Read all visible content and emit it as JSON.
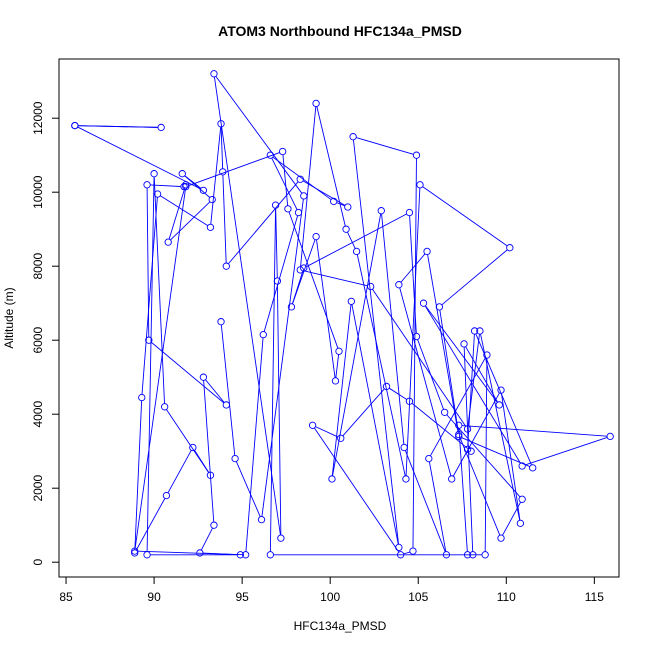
{
  "chart_data": {
    "type": "line",
    "title": "ATOM3 Northbound HFC134a_PMSD",
    "xlabel": "HFC134a_PMSD",
    "ylabel": "Altitude (m)",
    "xlim": [
      84.6,
      116.4
    ],
    "ylim": [
      -400,
      13600
    ],
    "xticks": [
      85,
      90,
      95,
      100,
      105,
      110,
      115
    ],
    "yticks": [
      0,
      2000,
      4000,
      6000,
      8000,
      10000,
      12000
    ],
    "grid": false,
    "legend": "none",
    "color": "#0000ff",
    "marker": "open-circle",
    "points": [
      {
        "x": 85.5,
        "y": 11800
      },
      {
        "x": 90.4,
        "y": 11750
      },
      {
        "x": 85.5,
        "y": 11800
      },
      {
        "x": 92.8,
        "y": 10050
      },
      {
        "x": 91.6,
        "y": 10500
      },
      {
        "x": 93.3,
        "y": 9800
      },
      {
        "x": 90.8,
        "y": 8650
      },
      {
        "x": 91.8,
        "y": 10200
      },
      {
        "x": 91.7,
        "y": 10150
      },
      {
        "x": 89.6,
        "y": 10200
      },
      {
        "x": 89.7,
        "y": 6000
      },
      {
        "x": 94.1,
        "y": 4250
      },
      {
        "x": 92.8,
        "y": 5000
      },
      {
        "x": 93.4,
        "y": 1000
      },
      {
        "x": 92.6,
        "y": 250
      },
      {
        "x": 94.9,
        "y": 200
      },
      {
        "x": 89.6,
        "y": 200
      },
      {
        "x": 90.0,
        "y": 10500
      },
      {
        "x": 90.6,
        "y": 4200
      },
      {
        "x": 93.2,
        "y": 2350
      },
      {
        "x": 92.2,
        "y": 3100
      },
      {
        "x": 90.7,
        "y": 1800
      },
      {
        "x": 88.9,
        "y": 250
      },
      {
        "x": 89.3,
        "y": 4450
      },
      {
        "x": 90.2,
        "y": 9950
      },
      {
        "x": 93.2,
        "y": 9050
      },
      {
        "x": 93.8,
        "y": 11850
      },
      {
        "x": 93.9,
        "y": 10550
      },
      {
        "x": 94.1,
        "y": 8000
      },
      {
        "x": 98.3,
        "y": 10350
      },
      {
        "x": 101.0,
        "y": 9600
      },
      {
        "x": 100.2,
        "y": 9750
      },
      {
        "x": 96.6,
        "y": 11000
      },
      {
        "x": 98.2,
        "y": 9450
      },
      {
        "x": 96.2,
        "y": 6150
      },
      {
        "x": 95.2,
        "y": 200
      },
      {
        "x": 88.9,
        "y": 300
      },
      {
        "x": 91.8,
        "y": 10150
      },
      {
        "x": 97.3,
        "y": 11100
      },
      {
        "x": 97.6,
        "y": 9550
      },
      {
        "x": 100.5,
        "y": 5700
      },
      {
        "x": 100.3,
        "y": 4900
      },
      {
        "x": 99.2,
        "y": 8800
      },
      {
        "x": 97.8,
        "y": 6900
      },
      {
        "x": 98.5,
        "y": 7950
      },
      {
        "x": 104.5,
        "y": 9450
      },
      {
        "x": 104.9,
        "y": 6100
      },
      {
        "x": 106.5,
        "y": 4050
      },
      {
        "x": 110.9,
        "y": 1700
      },
      {
        "x": 109.7,
        "y": 650
      },
      {
        "x": 107.3,
        "y": 3450
      },
      {
        "x": 106.2,
        "y": 6900
      },
      {
        "x": 110.2,
        "y": 8500
      },
      {
        "x": 105.1,
        "y": 10200
      },
      {
        "x": 104.3,
        "y": 2250
      },
      {
        "x": 101.5,
        "y": 8400
      },
      {
        "x": 100.9,
        "y": 9000
      },
      {
        "x": 99.2,
        "y": 12400
      },
      {
        "x": 98.3,
        "y": 7900
      },
      {
        "x": 102.3,
        "y": 7450
      },
      {
        "x": 107.8,
        "y": 3600
      },
      {
        "x": 108.5,
        "y": 6250
      },
      {
        "x": 110.8,
        "y": 1050
      },
      {
        "x": 109.7,
        "y": 4650
      },
      {
        "x": 106.9,
        "y": 2250
      },
      {
        "x": 103.9,
        "y": 7500
      },
      {
        "x": 105.5,
        "y": 8400
      },
      {
        "x": 107.3,
        "y": 3400
      },
      {
        "x": 111.5,
        "y": 2550
      },
      {
        "x": 108.2,
        "y": 6250
      },
      {
        "x": 107.8,
        "y": 3050
      },
      {
        "x": 108.0,
        "y": 3000
      },
      {
        "x": 104.5,
        "y": 4350
      },
      {
        "x": 103.2,
        "y": 4750
      },
      {
        "x": 100.6,
        "y": 3350
      },
      {
        "x": 99.0,
        "y": 3700
      },
      {
        "x": 104.0,
        "y": 200
      },
      {
        "x": 104.7,
        "y": 300
      },
      {
        "x": 104.9,
        "y": 11000
      },
      {
        "x": 101.3,
        "y": 11500
      },
      {
        "x": 103.9,
        "y": 400
      },
      {
        "x": 101.2,
        "y": 7050
      },
      {
        "x": 100.1,
        "y": 2250
      },
      {
        "x": 102.9,
        "y": 9500
      },
      {
        "x": 104.2,
        "y": 3100
      },
      {
        "x": 106.6,
        "y": 200
      },
      {
        "x": 105.6,
        "y": 2800
      },
      {
        "x": 108.9,
        "y": 5600
      },
      {
        "x": 108.8,
        "y": 200
      },
      {
        "x": 107.8,
        "y": 200
      },
      {
        "x": 107.3,
        "y": 3700
      },
      {
        "x": 115.9,
        "y": 3400
      },
      {
        "x": 110.9,
        "y": 2600
      },
      {
        "x": 105.3,
        "y": 7000
      },
      {
        "x": 109.6,
        "y": 4250
      },
      {
        "x": 107.6,
        "y": 5900
      },
      {
        "x": 108.1,
        "y": 200
      },
      {
        "x": 96.6,
        "y": 200
      },
      {
        "x": 96.9,
        "y": 9650
      },
      {
        "x": 97.0,
        "y": 7600
      },
      {
        "x": 97.2,
        "y": 650
      },
      {
        "x": 93.4,
        "y": 13200
      },
      {
        "x": 98.5,
        "y": 9900
      },
      {
        "x": 96.1,
        "y": 1150
      },
      {
        "x": 94.6,
        "y": 2800
      },
      {
        "x": 93.8,
        "y": 6500
      }
    ]
  }
}
